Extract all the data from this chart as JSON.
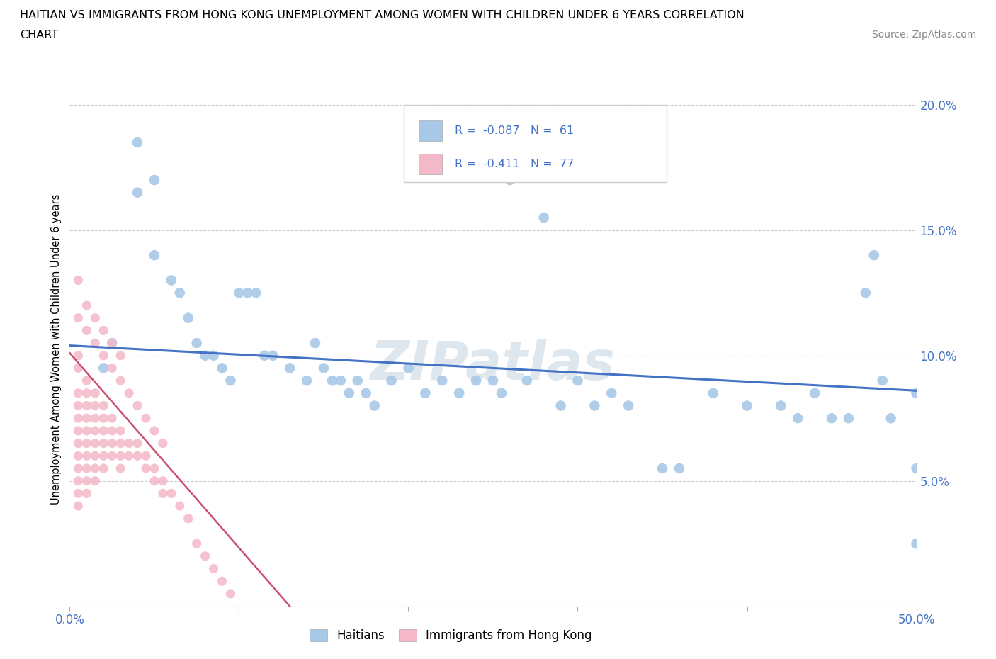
{
  "title_line1": "HAITIAN VS IMMIGRANTS FROM HONG KONG UNEMPLOYMENT AMONG WOMEN WITH CHILDREN UNDER 6 YEARS CORRELATION",
  "title_line2": "CHART",
  "source": "Source: ZipAtlas.com",
  "ylabel": "Unemployment Among Women with Children Under 6 years",
  "xlim": [
    0,
    0.5
  ],
  "ylim": [
    0,
    0.205
  ],
  "xticks": [
    0.0,
    0.1,
    0.2,
    0.3,
    0.4,
    0.5
  ],
  "yticks": [
    0.0,
    0.05,
    0.1,
    0.15,
    0.2
  ],
  "color_blue": "#a8c8e8",
  "color_blue_dark": "#4472c4",
  "color_pink": "#f4b8c8",
  "color_pink_dark": "#c9506e",
  "trendline_blue": [
    0.0,
    0.104,
    0.5,
    0.086
  ],
  "trendline_pink": [
    0.0,
    0.101,
    0.13,
    0.0
  ],
  "trendline_pink_ext": [
    0.13,
    0.0,
    0.5,
    -0.062
  ],
  "watermark": "ZIPatlas",
  "blue_points": [
    [
      0.02,
      0.095
    ],
    [
      0.025,
      0.105
    ],
    [
      0.04,
      0.185
    ],
    [
      0.04,
      0.165
    ],
    [
      0.05,
      0.17
    ],
    [
      0.05,
      0.14
    ],
    [
      0.06,
      0.13
    ],
    [
      0.065,
      0.125
    ],
    [
      0.07,
      0.115
    ],
    [
      0.075,
      0.105
    ],
    [
      0.08,
      0.1
    ],
    [
      0.085,
      0.1
    ],
    [
      0.09,
      0.095
    ],
    [
      0.095,
      0.09
    ],
    [
      0.1,
      0.125
    ],
    [
      0.105,
      0.125
    ],
    [
      0.11,
      0.125
    ],
    [
      0.115,
      0.1
    ],
    [
      0.12,
      0.1
    ],
    [
      0.13,
      0.095
    ],
    [
      0.14,
      0.09
    ],
    [
      0.145,
      0.105
    ],
    [
      0.15,
      0.095
    ],
    [
      0.155,
      0.09
    ],
    [
      0.16,
      0.09
    ],
    [
      0.165,
      0.085
    ],
    [
      0.17,
      0.09
    ],
    [
      0.175,
      0.085
    ],
    [
      0.18,
      0.08
    ],
    [
      0.19,
      0.09
    ],
    [
      0.2,
      0.095
    ],
    [
      0.21,
      0.085
    ],
    [
      0.22,
      0.09
    ],
    [
      0.23,
      0.085
    ],
    [
      0.24,
      0.09
    ],
    [
      0.25,
      0.09
    ],
    [
      0.255,
      0.085
    ],
    [
      0.26,
      0.17
    ],
    [
      0.27,
      0.09
    ],
    [
      0.28,
      0.155
    ],
    [
      0.3,
      0.09
    ],
    [
      0.32,
      0.085
    ],
    [
      0.33,
      0.08
    ],
    [
      0.35,
      0.055
    ],
    [
      0.36,
      0.055
    ],
    [
      0.38,
      0.085
    ],
    [
      0.4,
      0.08
    ],
    [
      0.42,
      0.08
    ],
    [
      0.43,
      0.075
    ],
    [
      0.44,
      0.085
    ],
    [
      0.45,
      0.075
    ],
    [
      0.46,
      0.075
    ],
    [
      0.47,
      0.125
    ],
    [
      0.475,
      0.14
    ],
    [
      0.48,
      0.09
    ],
    [
      0.485,
      0.075
    ],
    [
      0.5,
      0.085
    ],
    [
      0.5,
      0.055
    ],
    [
      0.5,
      0.025
    ],
    [
      0.29,
      0.08
    ],
    [
      0.31,
      0.08
    ]
  ],
  "pink_points": [
    [
      0.005,
      0.1
    ],
    [
      0.005,
      0.095
    ],
    [
      0.005,
      0.085
    ],
    [
      0.005,
      0.08
    ],
    [
      0.005,
      0.075
    ],
    [
      0.005,
      0.07
    ],
    [
      0.005,
      0.065
    ],
    [
      0.005,
      0.06
    ],
    [
      0.005,
      0.055
    ],
    [
      0.005,
      0.05
    ],
    [
      0.005,
      0.045
    ],
    [
      0.005,
      0.04
    ],
    [
      0.01,
      0.09
    ],
    [
      0.01,
      0.085
    ],
    [
      0.01,
      0.08
    ],
    [
      0.01,
      0.075
    ],
    [
      0.01,
      0.07
    ],
    [
      0.01,
      0.065
    ],
    [
      0.01,
      0.06
    ],
    [
      0.01,
      0.055
    ],
    [
      0.01,
      0.05
    ],
    [
      0.01,
      0.045
    ],
    [
      0.015,
      0.085
    ],
    [
      0.015,
      0.08
    ],
    [
      0.015,
      0.075
    ],
    [
      0.015,
      0.07
    ],
    [
      0.015,
      0.065
    ],
    [
      0.015,
      0.06
    ],
    [
      0.015,
      0.055
    ],
    [
      0.015,
      0.05
    ],
    [
      0.02,
      0.08
    ],
    [
      0.02,
      0.075
    ],
    [
      0.02,
      0.07
    ],
    [
      0.02,
      0.065
    ],
    [
      0.02,
      0.06
    ],
    [
      0.02,
      0.055
    ],
    [
      0.025,
      0.075
    ],
    [
      0.025,
      0.07
    ],
    [
      0.025,
      0.065
    ],
    [
      0.025,
      0.06
    ],
    [
      0.03,
      0.07
    ],
    [
      0.03,
      0.065
    ],
    [
      0.03,
      0.06
    ],
    [
      0.03,
      0.055
    ],
    [
      0.035,
      0.065
    ],
    [
      0.035,
      0.06
    ],
    [
      0.04,
      0.065
    ],
    [
      0.04,
      0.06
    ],
    [
      0.045,
      0.06
    ],
    [
      0.045,
      0.055
    ],
    [
      0.05,
      0.055
    ],
    [
      0.05,
      0.05
    ],
    [
      0.055,
      0.05
    ],
    [
      0.055,
      0.045
    ],
    [
      0.06,
      0.045
    ],
    [
      0.065,
      0.04
    ],
    [
      0.07,
      0.035
    ],
    [
      0.075,
      0.025
    ],
    [
      0.08,
      0.02
    ],
    [
      0.085,
      0.015
    ],
    [
      0.09,
      0.01
    ],
    [
      0.095,
      0.005
    ],
    [
      0.005,
      0.115
    ],
    [
      0.005,
      0.13
    ],
    [
      0.01,
      0.11
    ],
    [
      0.01,
      0.12
    ],
    [
      0.015,
      0.105
    ],
    [
      0.015,
      0.115
    ],
    [
      0.02,
      0.1
    ],
    [
      0.02,
      0.11
    ],
    [
      0.025,
      0.095
    ],
    [
      0.025,
      0.105
    ],
    [
      0.03,
      0.09
    ],
    [
      0.03,
      0.1
    ],
    [
      0.035,
      0.085
    ],
    [
      0.04,
      0.08
    ],
    [
      0.045,
      0.075
    ],
    [
      0.05,
      0.07
    ],
    [
      0.055,
      0.065
    ]
  ]
}
